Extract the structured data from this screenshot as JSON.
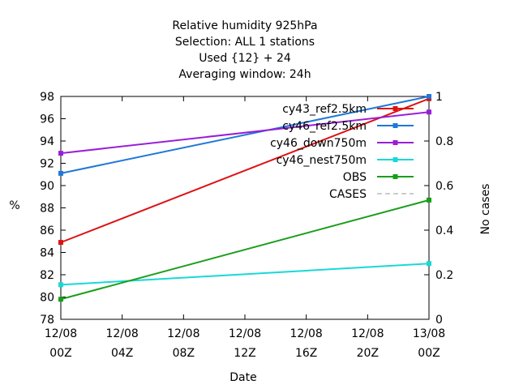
{
  "chart_data": {
    "type": "line",
    "title_lines": [
      "Relative humidity 925hPa",
      "Selection: ALL      1 stations",
      "Used {12} + 24",
      "Averaging window: 24h"
    ],
    "xlabel": "Date",
    "ylabel": "%",
    "y2label": "No cases",
    "x_ticks": [
      {
        "d": "12/08",
        "t": "00Z"
      },
      {
        "d": "12/08",
        "t": "04Z"
      },
      {
        "d": "12/08",
        "t": "08Z"
      },
      {
        "d": "12/08",
        "t": "12Z"
      },
      {
        "d": "12/08",
        "t": "16Z"
      },
      {
        "d": "12/08",
        "t": "20Z"
      },
      {
        "d": "13/08",
        "t": "00Z"
      }
    ],
    "y_ticks": [
      "78",
      "80",
      "82",
      "84",
      "86",
      "88",
      "90",
      "92",
      "94",
      "96",
      "98"
    ],
    "y2_ticks": [
      "0",
      "0.2",
      "0.4",
      "0.6",
      "0.8",
      "1"
    ],
    "xlim_hours": [
      0,
      24
    ],
    "ylim": [
      78,
      98
    ],
    "y2lim": [
      0,
      1
    ],
    "legend_position": "top-right",
    "series": [
      {
        "name": "cy43_ref2.5km",
        "color": "#dd1111",
        "x_hours": [
          0,
          24
        ],
        "values": [
          84.9,
          97.8
        ]
      },
      {
        "name": "cy46_ref2.5km",
        "color": "#1f78d8",
        "x_hours": [
          0,
          24
        ],
        "values": [
          91.1,
          98.0
        ]
      },
      {
        "name": "cy46_down750m",
        "color": "#9a1ed8",
        "x_hours": [
          0,
          24
        ],
        "values": [
          92.9,
          96.6
        ]
      },
      {
        "name": "cy46_nest750m",
        "color": "#19d8d8",
        "x_hours": [
          0,
          24
        ],
        "values": [
          81.1,
          83.0
        ]
      },
      {
        "name": "OBS",
        "color": "#1a9e1a",
        "x_hours": [
          0,
          24
        ],
        "values": [
          79.8,
          88.7
        ]
      },
      {
        "name": "CASES",
        "color": "#999999",
        "x_hours": [],
        "values": [],
        "dashed": true
      }
    ]
  }
}
